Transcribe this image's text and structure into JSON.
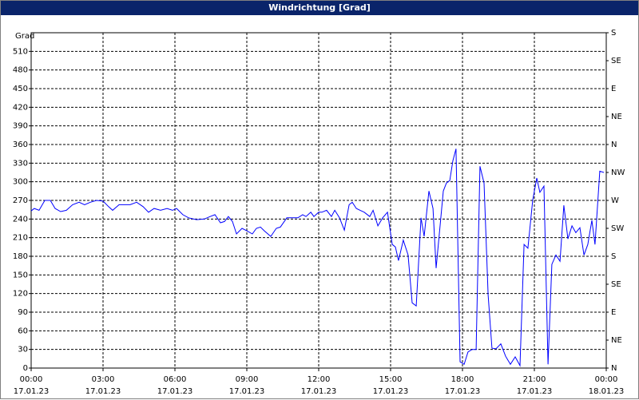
{
  "chart_data": {
    "type": "line",
    "title": "Windrichtung [Grad]",
    "y_label": "Grad",
    "xlim": [
      0,
      24
    ],
    "xticks": [
      {
        "value": 0,
        "label": "00:00"
      },
      {
        "value": 3,
        "label": "03:00"
      },
      {
        "value": 6,
        "label": "06:00"
      },
      {
        "value": 9,
        "label": "09:00"
      },
      {
        "value": 12,
        "label": "12:00"
      },
      {
        "value": 15,
        "label": "15:00"
      },
      {
        "value": 18,
        "label": "18:00"
      },
      {
        "value": 21,
        "label": "21:00"
      },
      {
        "value": 24,
        "label": "00:00"
      }
    ],
    "xtick_dates": [
      "17.01.23",
      "17.01.23",
      "17.01.23",
      "17.01.23",
      "17.01.23",
      "17.01.23",
      "17.01.23",
      "17.01.23",
      "18.01.23"
    ],
    "ylim": [
      0,
      540
    ],
    "yticks": [
      0,
      30,
      60,
      90,
      120,
      150,
      180,
      210,
      240,
      270,
      300,
      330,
      360,
      390,
      420,
      450,
      480,
      510
    ],
    "y2lim": [
      0,
      540
    ],
    "y2ticks": [
      {
        "value": 0,
        "label": "N"
      },
      {
        "value": 45,
        "label": "NE"
      },
      {
        "value": 90,
        "label": "E"
      },
      {
        "value": 135,
        "label": "SE"
      },
      {
        "value": 180,
        "label": "S"
      },
      {
        "value": 225,
        "label": "SW"
      },
      {
        "value": 270,
        "label": "W"
      },
      {
        "value": 315,
        "label": "NW"
      },
      {
        "value": 360,
        "label": "N"
      },
      {
        "value": 405,
        "label": "NE"
      },
      {
        "value": 450,
        "label": "E"
      },
      {
        "value": 495,
        "label": "SE"
      },
      {
        "value": 540,
        "label": "S"
      }
    ],
    "grid": true,
    "x": [
      0,
      0.13,
      0.33,
      0.57,
      0.8,
      1,
      1.23,
      1.47,
      1.73,
      2,
      2.23,
      2.47,
      2.73,
      3,
      3.23,
      3.4,
      3.67,
      3.9,
      4.13,
      4.4,
      4.67,
      4.9,
      5.13,
      5.4,
      5.67,
      5.9,
      6.07,
      6.33,
      6.57,
      6.9,
      7.23,
      7.47,
      7.67,
      7.9,
      8.07,
      8.23,
      8.4,
      8.57,
      8.8,
      9,
      9.23,
      9.4,
      9.57,
      9.73,
      10,
      10.23,
      10.4,
      10.67,
      10.9,
      11.13,
      11.33,
      11.47,
      11.67,
      11.8,
      12,
      12.13,
      12.33,
      12.53,
      12.67,
      12.87,
      13.07,
      13.27,
      13.4,
      13.57,
      13.73,
      13.9,
      14.13,
      14.27,
      14.47,
      14.67,
      14.87,
      15.07,
      15.2,
      15.33,
      15.53,
      15.73,
      15.9,
      16.07,
      16.27,
      16.4,
      16.6,
      16.77,
      16.9,
      17.07,
      17.2,
      17.33,
      17.47,
      17.6,
      17.73,
      17.9,
      18.07,
      18.23,
      18.4,
      18.57,
      18.73,
      18.9,
      19.07,
      19.23,
      19.4,
      19.6,
      19.8,
      20,
      20.2,
      20.4,
      20.57,
      20.73,
      20.93,
      21.1,
      21.23,
      21.4,
      21.57,
      21.73,
      21.9,
      22.07,
      22.23,
      22.4,
      22.57,
      22.73,
      22.9,
      23.07,
      23.23,
      23.4,
      23.53,
      23.73,
      23.9
    ],
    "series": [
      {
        "color": "#0000ff",
        "values": [
          253,
          257,
          254,
          270,
          270,
          257,
          252,
          254,
          263,
          267,
          263,
          267,
          270,
          269,
          260,
          254,
          263,
          263,
          263,
          267,
          260,
          251,
          257,
          254,
          257,
          254,
          257,
          247,
          242,
          239,
          240,
          244,
          247,
          234,
          236,
          244,
          236,
          216,
          225,
          221,
          216,
          225,
          227,
          221,
          212,
          225,
          227,
          242,
          242,
          242,
          247,
          244,
          251,
          244,
          251,
          251,
          254,
          244,
          254,
          242,
          222,
          263,
          267,
          257,
          254,
          251,
          244,
          254,
          229,
          242,
          251,
          199,
          195,
          173,
          206,
          182,
          105,
          100,
          242,
          212,
          285,
          257,
          161,
          231,
          285,
          298,
          302,
          334,
          353,
          10,
          6,
          26,
          30,
          30,
          325,
          298,
          118,
          32,
          31,
          39,
          19,
          6,
          18,
          4,
          199,
          193,
          270,
          306,
          283,
          293,
          6,
          167,
          182,
          172,
          262,
          208,
          229,
          218,
          226,
          182,
          199,
          238,
          199,
          317,
          315
        ]
      }
    ]
  }
}
